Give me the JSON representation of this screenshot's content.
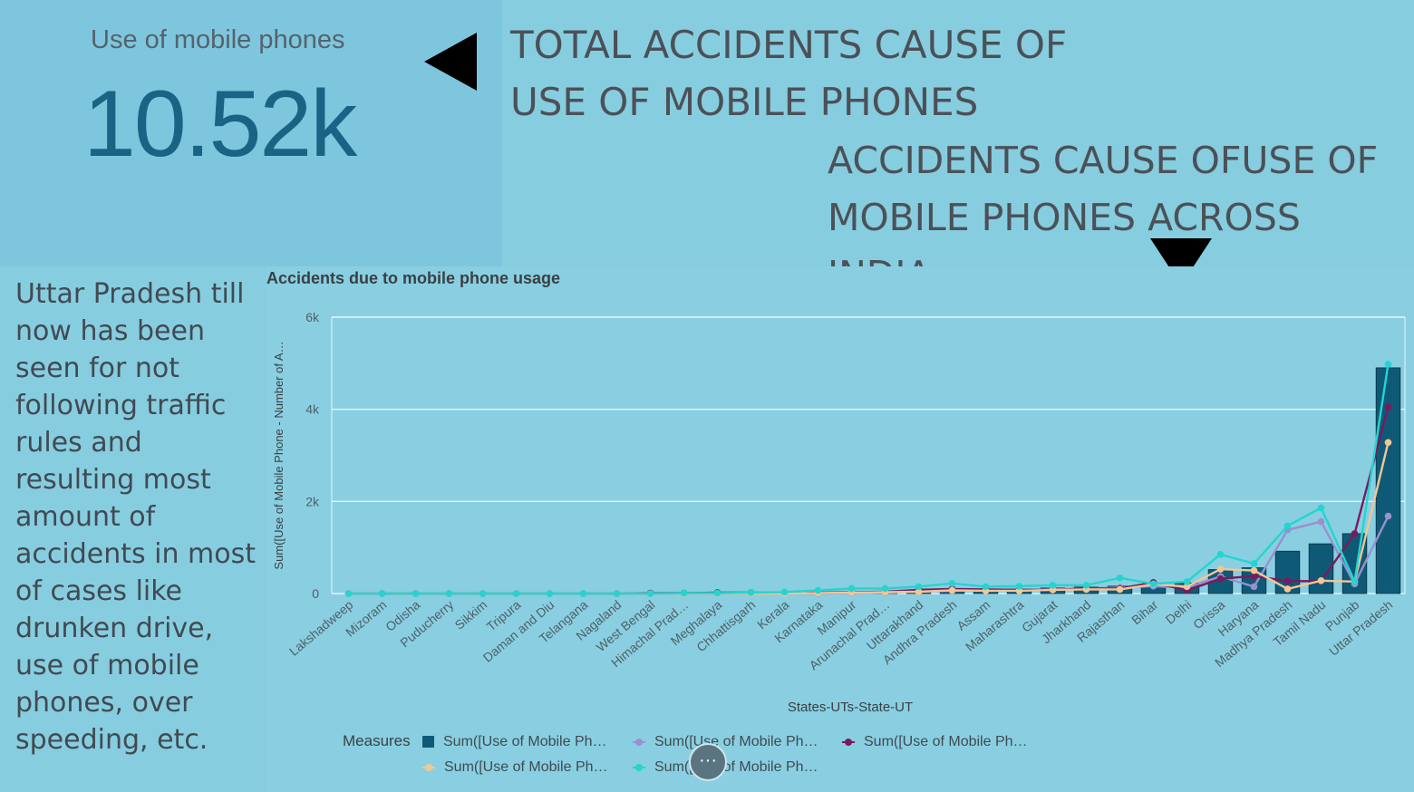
{
  "kpi": {
    "label": "Use of mobile phones",
    "value": "10.52k"
  },
  "headline": {
    "line1": "TOTAL ACCIDENTS CAUSE OF",
    "line2": "USE OF MOBILE PHONES"
  },
  "subheadline": {
    "line1": "ACCIDENTS CAUSE OFUSE OF",
    "line2": "MOBILE PHONES ACROSS INDIA"
  },
  "insight": "Uttar Pradesh till now has been seen for not following traffic rules and resulting most amount of accidents in most of cases like drunken drive, use of mobile phones, over speeding, etc.",
  "legend": {
    "title": "Measures",
    "items": [
      {
        "label": "Sum([Use of Mobile Ph…",
        "color": "#0e5a76",
        "kind": "bar"
      },
      {
        "label": "Sum([Use of Mobile Ph…",
        "color": "#9b8fd0",
        "kind": "line"
      },
      {
        "label": "Sum([Use of Mobile Ph…",
        "color": "#7a1a5e",
        "kind": "line"
      },
      {
        "label": "Sum([Use of Mobile Ph…",
        "color": "#f0c795",
        "kind": "line"
      },
      {
        "label": "Sum([Use of Mobile Ph…",
        "color": "#25d4d0",
        "kind": "line"
      }
    ]
  },
  "more_button": {
    "label": "···"
  },
  "chart_data": {
    "type": "bar",
    "title": "Accidents due to mobile phone usage",
    "xlabel": "States-UTs-State-UT",
    "ylabel": "Sum([Use of Mobile Phone - Number of A…",
    "ylim": [
      0,
      6000
    ],
    "yticks": [
      0,
      2000,
      4000,
      6000
    ],
    "ytick_labels": [
      "0",
      "2k",
      "4k",
      "6k"
    ],
    "grid": true,
    "legend_position": "bottom",
    "categories": [
      "Lakshadweep",
      "Mizoram",
      "Odisha",
      "Puducherry",
      "Sikkim",
      "Tripura",
      "Daman and Diu",
      "Telangana",
      "Nagaland",
      "West Bengal",
      "Himachal Prad…",
      "Meghalaya",
      "Chhattisgarh",
      "Kerala",
      "Karnataka",
      "Manipur",
      "Arunachal Prad…",
      "Uttarakhand",
      "Andhra Pradesh",
      "Assam",
      "Maharashtra",
      "Gujarat",
      "Jharkhand",
      "Rajasthan",
      "Bihar",
      "Delhi",
      "Orissa",
      "Haryana",
      "Madhya Pradesh",
      "Tamil Nadu",
      "Punjab",
      "Uttar Pradesh"
    ],
    "series": [
      {
        "kind": "bar",
        "color": "#0e5a76",
        "values": [
          0,
          0,
          0,
          0,
          0,
          0,
          0,
          0,
          0,
          0,
          0,
          0,
          0,
          0,
          10,
          20,
          30,
          50,
          80,
          90,
          100,
          120,
          140,
          160,
          180,
          230,
          520,
          560,
          920,
          1080,
          1300,
          4900
        ]
      },
      {
        "kind": "line",
        "color": "#9b8fd0",
        "values": [
          0,
          0,
          0,
          0,
          0,
          0,
          0,
          0,
          0,
          0,
          0,
          0,
          0,
          0,
          0,
          10,
          20,
          40,
          60,
          70,
          80,
          90,
          110,
          130,
          160,
          130,
          370,
          150,
          1380,
          1560,
          210,
          1680
        ]
      },
      {
        "kind": "line",
        "color": "#7a1a5e",
        "values": [
          0,
          0,
          0,
          0,
          0,
          0,
          0,
          0,
          0,
          10,
          10,
          20,
          20,
          20,
          20,
          30,
          40,
          80,
          100,
          90,
          80,
          80,
          110,
          110,
          240,
          70,
          320,
          380,
          270,
          270,
          1300,
          4050
        ]
      },
      {
        "kind": "line",
        "color": "#f0c795",
        "values": [
          0,
          0,
          0,
          0,
          0,
          0,
          0,
          0,
          0,
          0,
          0,
          0,
          0,
          0,
          10,
          20,
          30,
          40,
          70,
          60,
          60,
          80,
          90,
          90,
          200,
          150,
          530,
          500,
          100,
          280,
          260,
          3280
        ]
      },
      {
        "kind": "line",
        "color": "#25d4d0",
        "values": [
          0,
          0,
          0,
          0,
          0,
          0,
          0,
          0,
          0,
          0,
          10,
          10,
          20,
          30,
          70,
          110,
          110,
          150,
          220,
          150,
          160,
          180,
          180,
          340,
          210,
          260,
          850,
          650,
          1470,
          1860,
          260,
          4980
        ]
      }
    ]
  }
}
